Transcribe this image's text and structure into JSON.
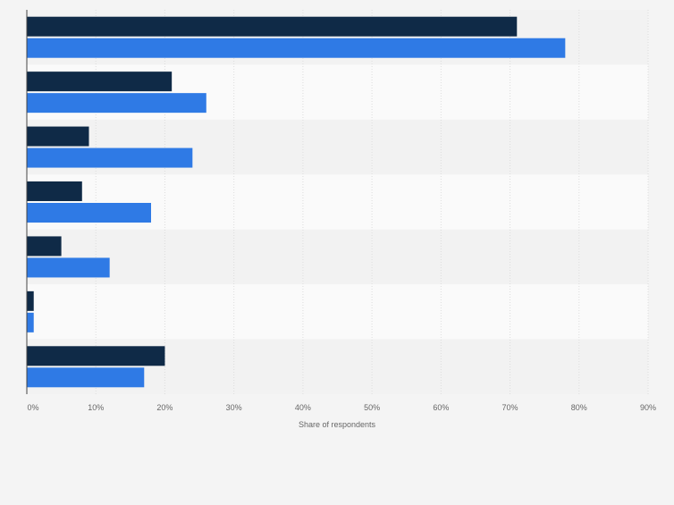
{
  "chart_data": {
    "type": "bar",
    "orientation": "horizontal",
    "categories": [
      "",
      "",
      "",
      "",
      "",
      "",
      ""
    ],
    "series": [
      {
        "color": "#0f2a47",
        "values": [
          71,
          21,
          9,
          8,
          5,
          1,
          20
        ]
      },
      {
        "color": "#2f7ae5",
        "values": [
          78,
          26,
          24,
          18,
          12,
          1,
          17
        ]
      }
    ],
    "xlabel": "Share of respondents",
    "ylabel": "",
    "xlim": [
      0,
      90
    ],
    "ticks": [
      0,
      10,
      20,
      30,
      40,
      50,
      60,
      70,
      80,
      90
    ],
    "tick_labels": [
      "0%",
      "10%",
      "20%",
      "30%",
      "40%",
      "50%",
      "60%",
      "70%",
      "80%",
      "90%"
    ],
    "grid": true,
    "legend": "none"
  },
  "colors": {
    "background": "#f4f4f4",
    "band_light": "#fafafa",
    "band_dark": "#f2f2f2",
    "grid": "#dddddd",
    "axis": "#444444",
    "text": "#666666"
  }
}
